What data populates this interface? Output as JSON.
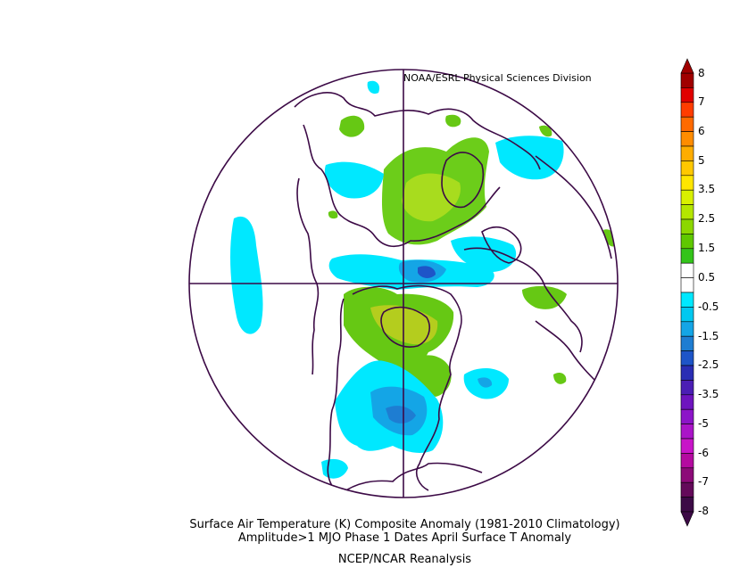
{
  "credit": "NOAA/ESRL Physical Sciences Division",
  "caption": {
    "line1": "Surface Air Temperature (K) Composite Anomaly (1981-2010 Climatology)",
    "line2": "Amplitude>1 MJO Phase 1 Dates April Surface T Anomaly",
    "line3": "NCEP/NCAR Reanalysis"
  },
  "colorbar": {
    "labels": [
      "8",
      "7",
      "6",
      "5",
      "3.5",
      "2.5",
      "1.5",
      "0.5",
      "-0.5",
      "-1.5",
      "-2.5",
      "-3.5",
      "-5",
      "-6",
      "-7",
      "-8"
    ],
    "colors": [
      "#a00000",
      "#e00000",
      "#ff3c00",
      "#ff6a00",
      "#ff8c00",
      "#ffad00",
      "#ffc800",
      "#ffe600",
      "#d8f000",
      "#b4e600",
      "#8cd700",
      "#5fc800",
      "#33c41a",
      "#ffffff",
      "#ffffff",
      "#00e8ff",
      "#00c8f0",
      "#14a5e6",
      "#1e7dd2",
      "#1e55c8",
      "#2a2db4",
      "#4b1eb4",
      "#6e14be",
      "#8c14c8",
      "#aa14c8",
      "#c814c8",
      "#b40aa0",
      "#8c0a78",
      "#640a5a",
      "#3c0a46"
    ]
  },
  "colors": {
    "warm_light": "#a8dc1e",
    "warm_mid": "#66c814",
    "warm_strong": "#b4cd1e",
    "cool_light": "#00e8ff",
    "cool_mid": "#14a5e6",
    "cool_strong": "#1e55c8",
    "cool_core": "#2a2db4",
    "coast": "#3c0a46"
  }
}
